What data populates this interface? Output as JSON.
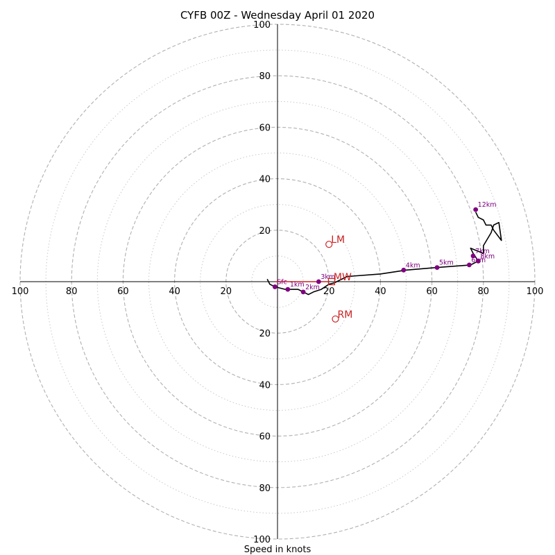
{
  "chart_data": {
    "type": "hodograph",
    "title": "CYFB 00Z - Wednesday April 01 2020",
    "xlabel": "Speed in knots",
    "range": [
      0,
      100
    ],
    "ring_major": [
      20,
      40,
      60,
      80,
      100
    ],
    "ring_minor": [
      10,
      30,
      50,
      70,
      90
    ],
    "x_tick_labels": [
      "100",
      "80",
      "60",
      "40",
      "20",
      "20",
      "40",
      "60",
      "80",
      "100"
    ],
    "y_tick_labels": [
      "100",
      "80",
      "60",
      "40",
      "20",
      "20",
      "40",
      "60",
      "80",
      "100"
    ],
    "hodograph_line": [
      [
        -4,
        1
      ],
      [
        -3,
        -1
      ],
      [
        -1,
        -2
      ],
      [
        3,
        -3
      ],
      [
        8,
        -3
      ],
      [
        10,
        -4
      ],
      [
        12,
        -5
      ],
      [
        14,
        -4
      ],
      [
        17,
        -3
      ],
      [
        20,
        -1
      ],
      [
        22,
        -0.5
      ],
      [
        27,
        2
      ],
      [
        40,
        3
      ],
      [
        50,
        4.5
      ],
      [
        62,
        5.5
      ],
      [
        75,
        6.5
      ],
      [
        77,
        7.5
      ],
      [
        78,
        8
      ],
      [
        76,
        11
      ],
      [
        75,
        13
      ],
      [
        80,
        11
      ],
      [
        80,
        14
      ],
      [
        83,
        19
      ],
      [
        84,
        22
      ],
      [
        86,
        23
      ],
      [
        87,
        16
      ],
      [
        84,
        20
      ],
      [
        83,
        22
      ],
      [
        81,
        22
      ],
      [
        80,
        24
      ],
      [
        78,
        25
      ],
      [
        77,
        27
      ]
    ],
    "height_points": [
      {
        "label": "Sfc",
        "u": -1,
        "v": -2
      },
      {
        "label": "1km",
        "u": 4,
        "v": -3
      },
      {
        "label": "2km",
        "u": 10,
        "v": -4
      },
      {
        "label": "3km",
        "u": 16,
        "v": 0
      },
      {
        "label": "4km",
        "u": 49,
        "v": 4.5
      },
      {
        "label": "5km",
        "u": 62,
        "v": 5.5
      },
      {
        "label": "6km",
        "u": 74.5,
        "v": 6.5
      },
      {
        "label": "7km",
        "u": 76,
        "v": 10
      },
      {
        "label": "8km",
        "u": 78,
        "v": 8
      },
      {
        "label": "12km",
        "u": 77,
        "v": 28
      }
    ],
    "storm_motion": [
      {
        "label": "LM",
        "u": 20,
        "v": 14.5,
        "marker": "circle"
      },
      {
        "label": "RM",
        "u": 22.5,
        "v": -14.5,
        "marker": "circle"
      },
      {
        "label": "MW",
        "u": 21,
        "v": 0,
        "marker": "square"
      }
    ],
    "shear_vector": {
      "from": [
        -1,
        0
      ],
      "to": [
        20,
        0
      ]
    },
    "colors": {
      "line": "#000000",
      "points": "#800080",
      "storm": "#cc2222",
      "grid": "#b0b0b0",
      "axis": "#000000"
    }
  }
}
